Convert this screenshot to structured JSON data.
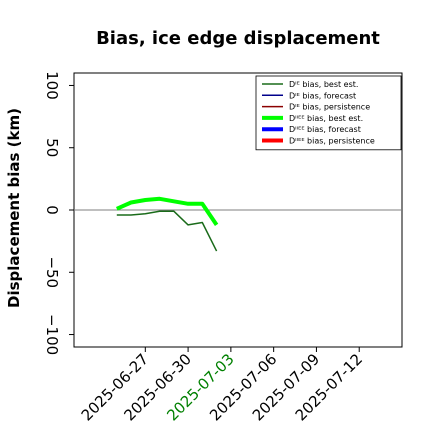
{
  "chart_data": {
    "type": "line",
    "title": "Bias, ice edge displacement",
    "xlabel": "",
    "ylabel": "Displacement bias (km)",
    "ylim": [
      -110,
      110
    ],
    "yticks": [
      -100,
      -50,
      0,
      50,
      100
    ],
    "ytick_labels": [
      "−100",
      "−50",
      "0",
      "50",
      "100"
    ],
    "xlim": [
      "2025-06-22",
      "2025-07-15"
    ],
    "xticks": [
      "2025-06-27",
      "2025-06-30",
      "2025-07-03",
      "2025-07-06",
      "2025-07-09",
      "2025-07-12"
    ],
    "highlight_tick": "2025-07-03",
    "highlight_color": "#008000",
    "zero_line": true,
    "grid": false,
    "legend_position": "upper right",
    "series": [
      {
        "name": "Dᴵᴱ bias, best est.",
        "color": "#1a6b1a",
        "linewidth": 1.5,
        "x": [
          "2025-06-25",
          "2025-06-26",
          "2025-06-27",
          "2025-06-28",
          "2025-06-29",
          "2025-06-30",
          "2025-07-01",
          "2025-07-02"
        ],
        "y": [
          -4,
          -4,
          -3,
          -1,
          -1,
          -12,
          -10,
          -33
        ]
      },
      {
        "name": "Dᴵᴱ bias, forecast",
        "color": "#00008b",
        "linewidth": 1.5,
        "x": [],
        "y": []
      },
      {
        "name": "Dᴵᴱ bias, persistence",
        "color": "#8b0000",
        "linewidth": 1.5,
        "x": [],
        "y": []
      },
      {
        "name": "Dᴵᴵᴱᴱ bias, best est.",
        "color": "#00ff00",
        "linewidth": 4,
        "x": [
          "2025-06-25",
          "2025-06-26",
          "2025-06-27",
          "2025-06-28",
          "2025-06-29",
          "2025-06-30",
          "2025-07-01",
          "2025-07-02"
        ],
        "y": [
          1,
          6,
          8,
          9,
          7,
          5,
          5,
          -12
        ]
      },
      {
        "name": "Dᴵᴵᴱᴱ bias, forecast",
        "color": "#0000ff",
        "linewidth": 4,
        "x": [],
        "y": []
      },
      {
        "name": "Dᴵᴵᴱᴱ bias, persistence",
        "color": "#ff0000",
        "linewidth": 4,
        "x": [],
        "y": []
      }
    ]
  }
}
